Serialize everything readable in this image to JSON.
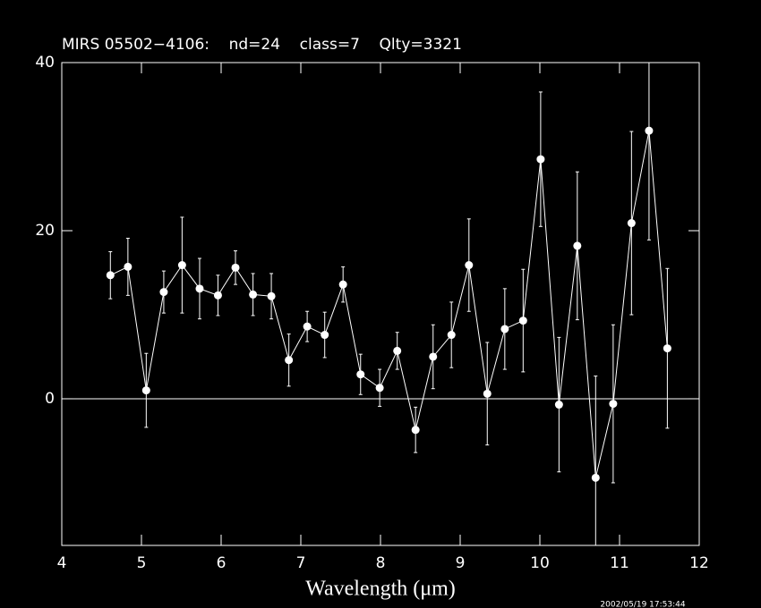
{
  "chart_data": {
    "type": "line",
    "title": "MIRS 05502−4106:    nd=24    class=7    Qlty=3321",
    "x_label": "Wavelength (μm)",
    "timestamp": "2002/05/19 17:53:44",
    "color": "#ffffff",
    "x": [
      4.61,
      4.83,
      5.06,
      5.28,
      5.51,
      5.73,
      5.96,
      6.18,
      6.4,
      6.63,
      6.85,
      7.08,
      7.3,
      7.53,
      7.75,
      7.99,
      8.21,
      8.44,
      8.66,
      8.89,
      9.11,
      9.34,
      9.56,
      9.79,
      10.01,
      10.24,
      10.47,
      10.7,
      10.92,
      11.15,
      11.37,
      11.6
    ],
    "values": [
      14.7,
      15.7,
      1.0,
      12.7,
      15.9,
      13.1,
      12.3,
      15.6,
      12.4,
      12.2,
      4.6,
      8.6,
      7.6,
      13.6,
      2.9,
      1.3,
      5.7,
      -3.7,
      5.0,
      7.6,
      15.9,
      0.6,
      8.3,
      9.3,
      28.5,
      -0.7,
      18.2,
      -9.4,
      -0.6,
      20.9,
      31.9,
      6.0
    ],
    "errors": [
      2.8,
      3.4,
      4.4,
      2.5,
      5.7,
      3.6,
      2.4,
      2.0,
      2.5,
      2.7,
      3.1,
      1.8,
      2.7,
      2.1,
      2.4,
      2.2,
      2.2,
      2.7,
      3.8,
      3.9,
      5.5,
      6.1,
      4.8,
      6.1,
      8.0,
      8.0,
      8.8,
      12.1,
      9.4,
      10.9,
      13.0,
      9.5
    ],
    "xlim": [
      4,
      12
    ],
    "xticks": [
      4,
      5,
      6,
      7,
      8,
      9,
      10,
      11,
      12
    ],
    "ylim": [
      -17.45,
      40
    ],
    "yticks": [
      0,
      20,
      40
    ],
    "zero_line": true
  }
}
